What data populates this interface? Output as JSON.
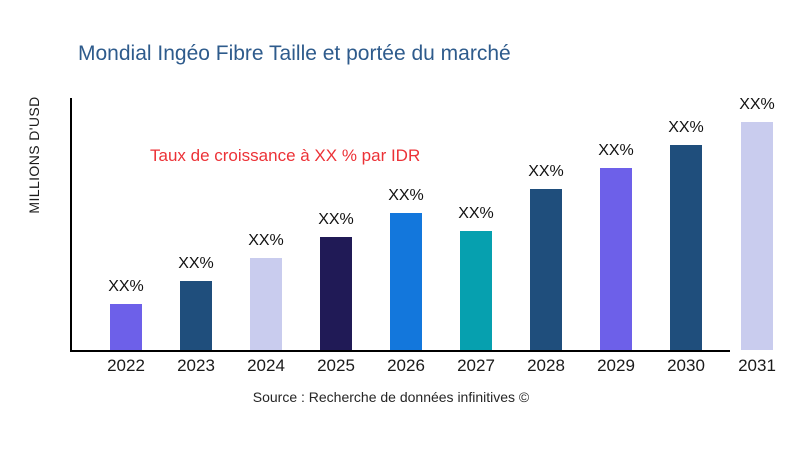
{
  "page": {
    "title": "Mondial Ingéo Fibre Taille et portée du marché",
    "title_color": "#2E5B8C"
  },
  "chart_data": {
    "type": "bar",
    "title": "Mondial Ingéo Fibre Taille et portée du marché",
    "xlabel": "",
    "ylabel": "MILLIONS D'USD",
    "categories": [
      "2022",
      "2023",
      "2024",
      "2025",
      "2026",
      "2027",
      "2028",
      "2029",
      "2030",
      "2031"
    ],
    "values": [
      46,
      69,
      92,
      113,
      137,
      119,
      161,
      182,
      205,
      228
    ],
    "values_note": "Numeric values are not labeled in the chart; values are relative bar heights in pixels (baseline 350px).",
    "bar_labels": [
      "XX%",
      "XX%",
      "XX%",
      "XX%",
      "XX%",
      "XX%",
      "XX%",
      "XX%",
      "XX%",
      "XX%"
    ],
    "bar_colors": [
      "#6D60E9",
      "#1F4E7C",
      "#C9CCEE",
      "#201A56",
      "#1377DC",
      "#06A0AF",
      "#1F4E7C",
      "#6D60E9",
      "#1F4E7C",
      "#C9CCEE"
    ],
    "axis_color": "#000000",
    "grid": false,
    "legend": "none",
    "annotation": {
      "text": "Taux de croissance à XX % par IDR",
      "color": "#EC3237"
    },
    "source": "Source : Recherche de données infinitives ©"
  }
}
